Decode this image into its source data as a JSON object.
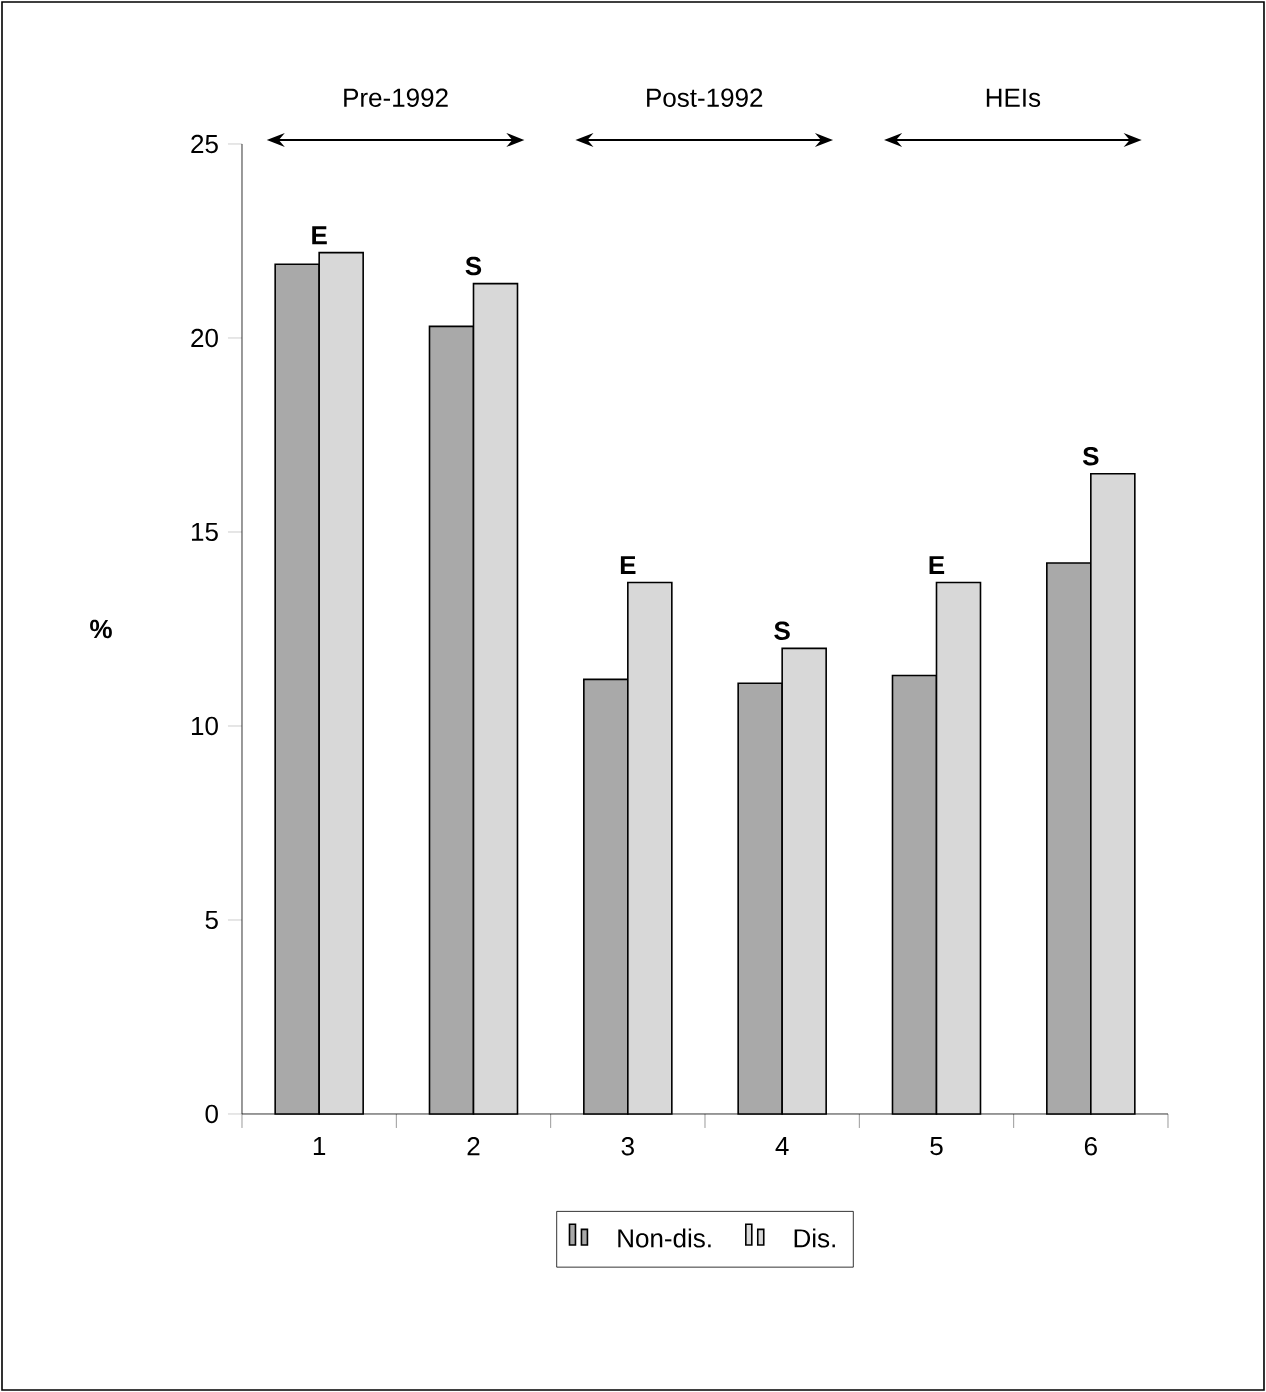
{
  "chart_data": {
    "type": "bar",
    "ylabel": "%",
    "categories": [
      "1",
      "2",
      "3",
      "4",
      "5",
      "6"
    ],
    "series": [
      {
        "name": "Non-dis.",
        "color": "#a9a9a9",
        "values": [
          21.9,
          20.3,
          11.2,
          11.1,
          11.3,
          14.2
        ]
      },
      {
        "name": "Dis.",
        "color": "#d8d8d8",
        "values": [
          22.2,
          21.4,
          13.7,
          12.0,
          13.7,
          16.5
        ]
      }
    ],
    "ylim": [
      0,
      25
    ],
    "yticks": [
      0,
      5,
      10,
      15,
      20,
      25
    ],
    "grid": false,
    "legend": "bottom",
    "annotations": [
      "Pre-1992",
      "Post-1992",
      "HEIs",
      {
        "text": "E",
        "x": "1",
        "y": 22.2
      },
      {
        "text": "S",
        "x": "2",
        "y": 21.4
      },
      {
        "text": "E",
        "x": "3",
        "y": 13.7
      },
      {
        "text": "S",
        "x": "4",
        "y": 12.0
      },
      {
        "text": "E",
        "x": "5",
        "y": 13.7
      },
      {
        "text": "S",
        "x": "6",
        "y": 16.5
      }
    ]
  }
}
